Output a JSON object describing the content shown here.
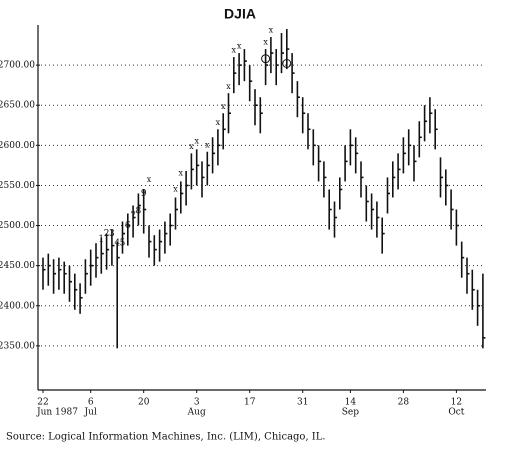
{
  "chart_data": {
    "type": "hlc",
    "title": "DJIA",
    "source": "Source:  Logical Information Machines, Inc. (LIM), Chicago, IL.",
    "categories": [
      "22",
      null,
      null,
      null,
      null,
      null,
      null,
      null,
      null,
      "6",
      null,
      null,
      null,
      null,
      null,
      null,
      null,
      null,
      null,
      "20",
      null,
      null,
      null,
      null,
      null,
      null,
      null,
      null,
      null,
      "3",
      null,
      null,
      null,
      null,
      null,
      null,
      null,
      null,
      null,
      "17",
      null,
      null,
      null,
      null,
      null,
      null,
      null,
      null,
      null,
      "31",
      null,
      null,
      null,
      null,
      null,
      null,
      null,
      null,
      "14",
      null,
      null,
      null,
      null,
      null,
      null,
      null,
      null,
      null,
      "28",
      null,
      null,
      null,
      null,
      null,
      null,
      null,
      null,
      null,
      "12",
      null,
      null,
      null,
      null,
      null
    ],
    "months": [
      "Jun 1987",
      null,
      null,
      null,
      null,
      null,
      null,
      null,
      null,
      "Jul",
      null,
      null,
      null,
      null,
      null,
      null,
      null,
      null,
      null,
      null,
      null,
      null,
      null,
      null,
      null,
      null,
      null,
      null,
      null,
      "Aug",
      null,
      null,
      null,
      null,
      null,
      null,
      null,
      null,
      null,
      null,
      null,
      null,
      null,
      null,
      null,
      null,
      null,
      null,
      null,
      null,
      null,
      null,
      null,
      null,
      null,
      null,
      null,
      null,
      "Sep",
      null,
      null,
      null,
      null,
      null,
      null,
      null,
      null,
      null,
      null,
      null,
      null,
      null,
      null,
      null,
      null,
      null,
      null,
      null,
      "Oct",
      null,
      null,
      null,
      null,
      null
    ],
    "high": [
      2460,
      2465,
      2458,
      2460,
      2455,
      2450,
      2440,
      2428,
      2458,
      2470,
      2478,
      2485,
      2490,
      2495,
      2480,
      2505,
      2515,
      2525,
      2540,
      2545,
      2500,
      2488,
      2495,
      2505,
      2515,
      2535,
      2555,
      2568,
      2590,
      2595,
      2580,
      2592,
      2610,
      2620,
      2640,
      2665,
      2710,
      2715,
      2720,
      2700,
      2670,
      2660,
      2720,
      2735,
      2720,
      2740,
      2745,
      2715,
      2680,
      2660,
      2640,
      2620,
      2600,
      2580,
      2545,
      2530,
      2560,
      2600,
      2620,
      2610,
      2580,
      2550,
      2540,
      2530,
      2510,
      2560,
      2580,
      2590,
      2610,
      2620,
      2600,
      2630,
      2650,
      2660,
      2645,
      2585,
      2570,
      2545,
      2520,
      2480,
      2460,
      2445,
      2420,
      2440
    ],
    "low": [
      2420,
      2425,
      2415,
      2420,
      2415,
      2405,
      2395,
      2390,
      2415,
      2425,
      2435,
      2440,
      2445,
      2450,
      2347,
      2465,
      2475,
      2485,
      2500,
      2490,
      2460,
      2450,
      2455,
      2465,
      2475,
      2495,
      2515,
      2525,
      2545,
      2550,
      2535,
      2550,
      2565,
      2575,
      2595,
      2615,
      2665,
      2675,
      2680,
      2655,
      2625,
      2615,
      2675,
      2690,
      2675,
      2690,
      2695,
      2665,
      2635,
      2615,
      2595,
      2575,
      2555,
      2535,
      2495,
      2485,
      2520,
      2555,
      2575,
      2565,
      2535,
      2505,
      2495,
      2485,
      2465,
      2515,
      2535,
      2545,
      2565,
      2575,
      2555,
      2585,
      2605,
      2615,
      2595,
      2535,
      2525,
      2495,
      2475,
      2435,
      2415,
      2395,
      2375,
      2347
    ],
    "close": [
      2445,
      2450,
      2440,
      2445,
      2440,
      2430,
      2420,
      2410,
      2440,
      2450,
      2460,
      2465,
      2470,
      2475,
      2460,
      2490,
      2500,
      2510,
      2525,
      2520,
      2480,
      2470,
      2480,
      2490,
      2500,
      2520,
      2540,
      2550,
      2570,
      2575,
      2560,
      2575,
      2590,
      2600,
      2620,
      2640,
      2690,
      2700,
      2705,
      2680,
      2650,
      2640,
      2700,
      2715,
      2700,
      2715,
      2720,
      2690,
      2660,
      2640,
      2620,
      2600,
      2580,
      2560,
      2520,
      2510,
      2545,
      2580,
      2600,
      2590,
      2560,
      2530,
      2520,
      2510,
      2490,
      2540,
      2560,
      2570,
      2590,
      2600,
      2580,
      2610,
      2630,
      2640,
      2620,
      2560,
      2550,
      2520,
      2500,
      2460,
      2440,
      2420,
      2400,
      2360
    ],
    "annotations": [
      {
        "index": 11,
        "value": 2483,
        "label": "1"
      },
      {
        "index": 12,
        "value": 2490,
        "label": "2"
      },
      {
        "index": 13,
        "value": 2490,
        "label": "3"
      },
      {
        "index": 14,
        "value": 2478,
        "label": "4"
      },
      {
        "index": 15,
        "value": 2478,
        "label": "5"
      },
      {
        "index": 16,
        "value": 2500,
        "label": "6"
      },
      {
        "index": 17,
        "value": 2512,
        "label": "7"
      },
      {
        "index": 18,
        "value": 2518,
        "label": "8"
      },
      {
        "index": 19,
        "value": 2540,
        "label": "9"
      }
    ],
    "x_markers": [
      {
        "index": 20,
        "value": 2557,
        "label": "x"
      },
      {
        "index": 25,
        "value": 2545,
        "label": "x"
      },
      {
        "index": 26,
        "value": 2565,
        "label": "x"
      },
      {
        "index": 28,
        "value": 2598,
        "label": "x"
      },
      {
        "index": 29,
        "value": 2605,
        "label": "x"
      },
      {
        "index": 31,
        "value": 2600,
        "label": "x"
      },
      {
        "index": 33,
        "value": 2628,
        "label": "x"
      },
      {
        "index": 34,
        "value": 2648,
        "label": "x"
      },
      {
        "index": 35,
        "value": 2673,
        "label": "x"
      },
      {
        "index": 36,
        "value": 2718,
        "label": "x"
      },
      {
        "index": 37,
        "value": 2723,
        "label": "x"
      },
      {
        "index": 42,
        "value": 2728,
        "label": "x"
      },
      {
        "index": 43,
        "value": 2743,
        "label": "x"
      }
    ],
    "circles": [
      {
        "index": 42,
        "value": 2708
      },
      {
        "index": 46,
        "value": 2702
      }
    ],
    "ylim": [
      2295,
      2750
    ],
    "yticks": [
      {
        "value": 2350,
        "label": "2350.00"
      },
      {
        "value": 2400,
        "label": "2400.00"
      },
      {
        "value": 2450,
        "label": "2450.00"
      },
      {
        "value": 2500,
        "label": "2500.00"
      },
      {
        "value": 2550,
        "label": "2550.00"
      },
      {
        "value": 2600,
        "label": "2600.00"
      },
      {
        "value": 2650,
        "label": "2650.00"
      },
      {
        "value": 2700,
        "label": "2700.00"
      }
    ],
    "grid": true
  }
}
